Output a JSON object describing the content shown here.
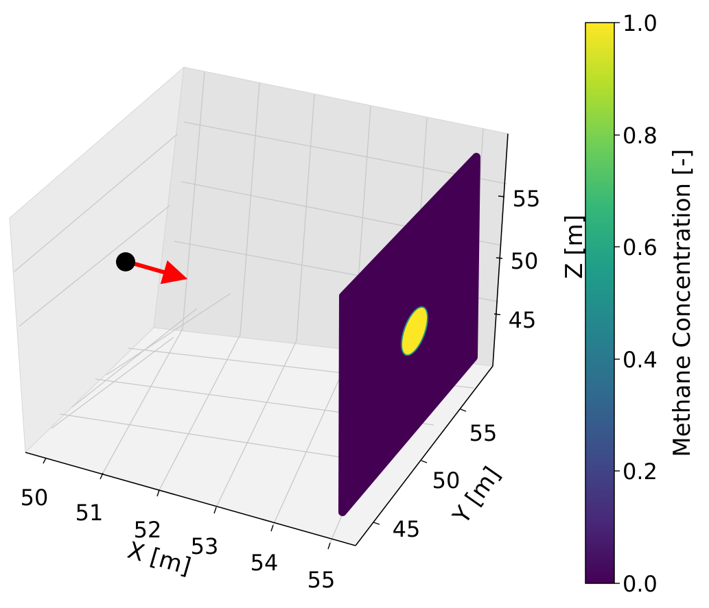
{
  "chart_data": {
    "type": "3d-scatter-surface",
    "axes": {
      "x": {
        "label": "X [m]",
        "ticks": [
          "50",
          "51",
          "52",
          "53",
          "54",
          "55"
        ]
      },
      "y": {
        "label": "Y [m]",
        "ticks": [
          "45",
          "50",
          "55"
        ]
      },
      "z": {
        "label": "Z [m]",
        "ticks": [
          "45",
          "50",
          "55"
        ]
      }
    },
    "grid": true,
    "source": {
      "x": 50,
      "y": 50,
      "z": 50,
      "marker": "circle",
      "color": "#000000"
    },
    "direction_arrow": {
      "color": "#ff0000"
    },
    "target_plane": {
      "x": 55,
      "y_range": [
        43,
        57
      ],
      "z_range": [
        43,
        57
      ],
      "background_value": 0.0,
      "plume_value": 1.0,
      "plume_center": {
        "y": 50,
        "z": 50
      }
    },
    "colorbar": {
      "label": "Methane Concentration [-]",
      "colormap": "viridis",
      "range": [
        0.0,
        1.0
      ],
      "ticks": [
        "0.0",
        "0.2",
        "0.4",
        "0.6",
        "0.8",
        "1.0"
      ],
      "placement": "right"
    }
  },
  "colors": {
    "pane": "#f2f2f2",
    "grid": "#b0b0b0",
    "plane_low": "#440154",
    "plume_high": "#fde725"
  }
}
